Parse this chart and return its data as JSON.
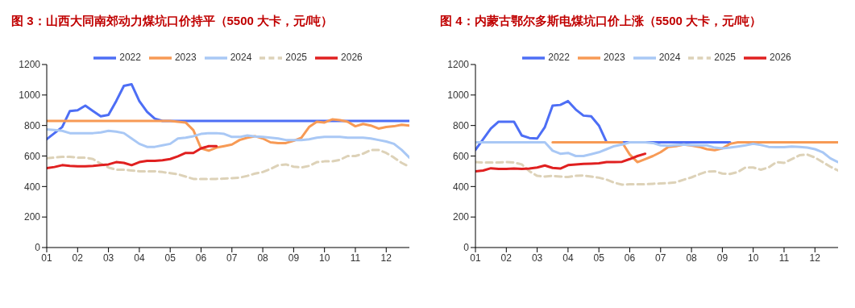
{
  "chart_data": [
    {
      "type": "line",
      "title": "图 3：山西大同南郊动力煤坑口价持平（5500 大卡，元/吨）",
      "x": [
        1,
        1.25,
        1.5,
        1.75,
        2,
        2.25,
        2.5,
        2.75,
        3,
        3.25,
        3.5,
        3.75,
        4,
        4.25,
        4.5,
        4.75,
        5,
        5.25,
        5.5,
        5.75,
        6,
        6.25,
        6.5,
        6.75,
        7,
        7.25,
        7.5,
        7.75,
        8,
        8.25,
        8.5,
        8.75,
        9,
        9.25,
        9.5,
        9.75,
        10,
        10.25,
        10.5,
        10.75,
        11,
        11.25,
        11.5,
        11.75,
        12,
        12.25,
        12.5,
        12.75
      ],
      "series": [
        {
          "name": "2022",
          "color": "#4d6ef5",
          "values": [
            710,
            750,
            790,
            895,
            900,
            930,
            895,
            860,
            870,
            960,
            1060,
            1070,
            960,
            890,
            845,
            830,
            830,
            830,
            830,
            830,
            830,
            830,
            830,
            830,
            830,
            830,
            830,
            830,
            830,
            830,
            830,
            830,
            830,
            830,
            830,
            830,
            830,
            830,
            830,
            830,
            830,
            830,
            830,
            830,
            830,
            830,
            830,
            830
          ]
        },
        {
          "name": "2023",
          "color": "#f79a55",
          "values": [
            830,
            830,
            830,
            830,
            830,
            830,
            830,
            830,
            830,
            830,
            830,
            830,
            830,
            830,
            830,
            830,
            830,
            825,
            820,
            770,
            650,
            635,
            655,
            665,
            675,
            705,
            720,
            730,
            715,
            690,
            685,
            685,
            700,
            720,
            790,
            825,
            820,
            840,
            835,
            825,
            795,
            810,
            800,
            780,
            790,
            795,
            805,
            800
          ]
        },
        {
          "name": "2024",
          "color": "#a9c8f5",
          "values": [
            775,
            770,
            765,
            750,
            750,
            750,
            750,
            755,
            765,
            760,
            750,
            715,
            680,
            660,
            660,
            670,
            680,
            715,
            720,
            730,
            745,
            750,
            750,
            745,
            725,
            725,
            735,
            728,
            725,
            720,
            715,
            705,
            705,
            705,
            710,
            720,
            725,
            725,
            725,
            720,
            720,
            720,
            715,
            705,
            695,
            680,
            640,
            590
          ]
        },
        {
          "name": "2025",
          "color": "#ddd2b8",
          "line_style": "dashed",
          "values": [
            585,
            590,
            595,
            595,
            590,
            590,
            580,
            550,
            525,
            510,
            510,
            505,
            500,
            500,
            500,
            495,
            488,
            480,
            465,
            450,
            450,
            450,
            450,
            452,
            455,
            458,
            470,
            485,
            495,
            515,
            540,
            545,
            530,
            525,
            535,
            560,
            565,
            565,
            575,
            600,
            600,
            615,
            640,
            640,
            620,
            590,
            555,
            530
          ]
        },
        {
          "name": "2026",
          "color": "#e02020",
          "values": [
            520,
            528,
            540,
            535,
            532,
            532,
            535,
            540,
            545,
            560,
            555,
            540,
            560,
            568,
            568,
            572,
            580,
            598,
            620,
            620,
            650,
            665,
            665,
            null,
            null,
            null,
            null,
            null,
            null,
            null,
            null,
            null,
            null,
            null,
            null,
            null,
            null,
            null,
            null,
            null,
            null,
            null,
            null,
            null,
            null,
            null,
            null,
            null
          ]
        }
      ],
      "xlim": [
        1,
        12.75
      ],
      "xticks": [
        {
          "value": 1,
          "label": "01"
        },
        {
          "value": 2,
          "label": "02"
        },
        {
          "value": 3,
          "label": "03"
        },
        {
          "value": 4,
          "label": "04"
        },
        {
          "value": 5,
          "label": "05"
        },
        {
          "value": 6,
          "label": "06"
        },
        {
          "value": 7,
          "label": "07"
        },
        {
          "value": 8,
          "label": "08"
        },
        {
          "value": 9,
          "label": "09"
        },
        {
          "value": 10,
          "label": "10"
        },
        {
          "value": 11,
          "label": "11"
        },
        {
          "value": 12,
          "label": "12"
        }
      ],
      "ylim": [
        0,
        1200
      ],
      "yticks": [
        0,
        200,
        400,
        600,
        800,
        1000,
        1200
      ],
      "legend": "top",
      "line_style": "solid"
    },
    {
      "type": "line",
      "title": "图 4：内蒙古鄂尔多斯电煤坑口价上涨（5500 大卡，元/吨）",
      "x": [
        1,
        1.25,
        1.5,
        1.75,
        2,
        2.25,
        2.5,
        2.75,
        3,
        3.25,
        3.5,
        3.75,
        4,
        4.25,
        4.5,
        4.75,
        5,
        5.25,
        5.5,
        5.75,
        6,
        6.25,
        6.5,
        6.75,
        7,
        7.25,
        7.5,
        7.75,
        8,
        8.25,
        8.5,
        8.75,
        9,
        9.25,
        9.5,
        9.75,
        10,
        10.25,
        10.5,
        10.75,
        11,
        11.25,
        11.5,
        11.75,
        12,
        12.25,
        12.5,
        12.75
      ],
      "series": [
        {
          "name": "2022",
          "color": "#4d6ef5",
          "values": [
            640,
            710,
            780,
            825,
            825,
            825,
            735,
            718,
            715,
            790,
            930,
            935,
            960,
            905,
            865,
            860,
            800,
            690,
            690,
            690,
            690,
            690,
            690,
            690,
            690,
            690,
            690,
            690,
            690,
            690,
            690,
            690,
            690,
            690,
            null,
            null,
            null,
            null,
            null,
            null,
            null,
            null,
            null,
            null,
            null,
            null,
            null,
            null
          ]
        },
        {
          "name": "2023",
          "color": "#f79a55",
          "values": [
            null,
            null,
            null,
            null,
            null,
            null,
            null,
            null,
            null,
            null,
            690,
            690,
            690,
            690,
            690,
            690,
            690,
            690,
            690,
            690,
            610,
            560,
            580,
            600,
            625,
            660,
            665,
            675,
            668,
            660,
            645,
            638,
            650,
            680,
            690,
            690,
            690,
            690,
            690,
            690,
            690,
            690,
            690,
            690,
            690,
            690,
            690,
            690
          ]
        },
        {
          "name": "2024",
          "color": "#a9c8f5",
          "values": [
            690,
            690,
            690,
            690,
            690,
            690,
            690,
            690,
            690,
            690,
            635,
            615,
            620,
            600,
            600,
            612,
            625,
            645,
            665,
            675,
            690,
            690,
            690,
            685,
            670,
            668,
            672,
            675,
            672,
            670,
            670,
            655,
            650,
            655,
            662,
            670,
            680,
            672,
            660,
            658,
            658,
            662,
            660,
            655,
            645,
            625,
            585,
            560
          ]
        },
        {
          "name": "2025",
          "color": "#ddd2b8",
          "line_style": "dashed",
          "values": [
            560,
            558,
            558,
            558,
            560,
            558,
            545,
            500,
            470,
            465,
            470,
            465,
            462,
            470,
            472,
            465,
            458,
            445,
            425,
            412,
            415,
            415,
            415,
            418,
            420,
            422,
            428,
            445,
            460,
            480,
            498,
            500,
            485,
            482,
            495,
            525,
            525,
            510,
            525,
            560,
            555,
            580,
            605,
            610,
            590,
            560,
            530,
            505
          ]
        },
        {
          "name": "2026",
          "color": "#e02020",
          "values": [
            500,
            505,
            520,
            515,
            515,
            518,
            515,
            518,
            525,
            538,
            522,
            518,
            540,
            545,
            548,
            550,
            553,
            560,
            560,
            562,
            580,
            600,
            615,
            null,
            null,
            null,
            null,
            null,
            null,
            null,
            null,
            null,
            null,
            null,
            null,
            null,
            null,
            null,
            null,
            null,
            null,
            null,
            null,
            null,
            null,
            null,
            null,
            null
          ]
        }
      ],
      "xlim": [
        1,
        12.75
      ],
      "xticks": [
        {
          "value": 1,
          "label": "01"
        },
        {
          "value": 2,
          "label": "02"
        },
        {
          "value": 3,
          "label": "03"
        },
        {
          "value": 4,
          "label": "04"
        },
        {
          "value": 5,
          "label": "05"
        },
        {
          "value": 6,
          "label": "06"
        },
        {
          "value": 7,
          "label": "07"
        },
        {
          "value": 8,
          "label": "08"
        },
        {
          "value": 9,
          "label": "09"
        },
        {
          "value": 10,
          "label": "10"
        },
        {
          "value": 11,
          "label": "11"
        },
        {
          "value": 12,
          "label": "12"
        }
      ],
      "ylim": [
        0,
        1200
      ],
      "yticks": [
        0,
        200,
        400,
        600,
        800,
        1000,
        1200
      ],
      "legend": "top",
      "line_style": "solid"
    }
  ]
}
